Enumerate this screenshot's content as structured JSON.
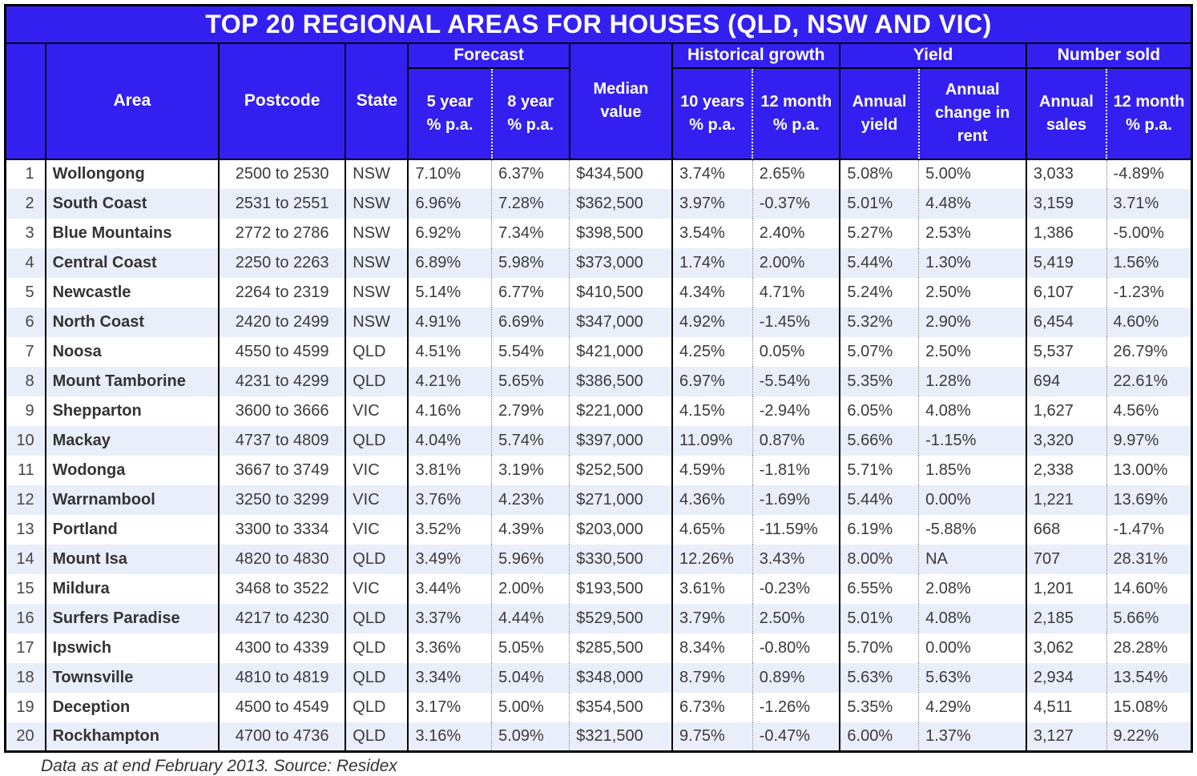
{
  "colors": {
    "header_blue": "#3320F0",
    "row_stripe": "#E9EEFB",
    "row_white": "#FFFFFF",
    "border_black": "#000000",
    "data_text": "#3A3A3A",
    "header_text": "#FFFFFF"
  },
  "chart_data": {
    "type": "table",
    "title": "TOP 20 REGIONAL AREAS FOR HOUSES (QLD, NSW AND VIC)",
    "footnote": "Data as at end February 2013. Source: Residex",
    "header": {
      "area": "Area",
      "postcode": "Postcode",
      "state": "State",
      "median": "Median\nvalue",
      "groups": {
        "forecast": "Forecast",
        "historical": "Historical growth",
        "yield": "Yield",
        "sold": "Number sold"
      },
      "sub": {
        "f5": "5 year\n% p.a.",
        "f8": "8 year\n% p.a.",
        "h10": "10 years\n% p.a.",
        "h12": "12 month\n% p.a.",
        "yield": "Annual\nyield",
        "rent": "Annual change in rent",
        "sales": "Annual\nsales",
        "n12": "12 month\n% p.a."
      }
    },
    "rows": [
      {
        "rank": "1",
        "area": "Wollongong",
        "postcode": "2500 to 2530",
        "state": "NSW",
        "f5": "7.10%",
        "f8": "6.37%",
        "median": "$434,500",
        "h10": "3.74%",
        "h12": "2.65%",
        "yield": "5.08%",
        "rent": "5.00%",
        "sales": "3,033",
        "n12": "-4.89%"
      },
      {
        "rank": "2",
        "area": "South Coast",
        "postcode": "2531 to 2551",
        "state": "NSW",
        "f5": "6.96%",
        "f8": "7.28%",
        "median": "$362,500",
        "h10": "3.97%",
        "h12": "-0.37%",
        "yield": "5.01%",
        "rent": "4.48%",
        "sales": "3,159",
        "n12": "3.71%"
      },
      {
        "rank": "3",
        "area": "Blue Mountains",
        "postcode": "2772 to 2786",
        "state": "NSW",
        "f5": "6.92%",
        "f8": "7.34%",
        "median": "$398,500",
        "h10": "3.54%",
        "h12": "2.40%",
        "yield": "5.27%",
        "rent": "2.53%",
        "sales": "1,386",
        "n12": "-5.00%"
      },
      {
        "rank": "4",
        "area": "Central Coast",
        "postcode": "2250 to 2263",
        "state": "NSW",
        "f5": "6.89%",
        "f8": "5.98%",
        "median": "$373,000",
        "h10": "1.74%",
        "h12": "2.00%",
        "yield": "5.44%",
        "rent": "1.30%",
        "sales": "5,419",
        "n12": "1.56%"
      },
      {
        "rank": "5",
        "area": "Newcastle",
        "postcode": "2264 to 2319",
        "state": "NSW",
        "f5": "5.14%",
        "f8": "6.77%",
        "median": "$410,500",
        "h10": "4.34%",
        "h12": "4.71%",
        "yield": "5.24%",
        "rent": "2.50%",
        "sales": "6,107",
        "n12": "-1.23%"
      },
      {
        "rank": "6",
        "area": "North Coast",
        "postcode": "2420 to 2499",
        "state": "NSW",
        "f5": "4.91%",
        "f8": "6.69%",
        "median": "$347,000",
        "h10": "4.92%",
        "h12": "-1.45%",
        "yield": "5.32%",
        "rent": "2.90%",
        "sales": "6,454",
        "n12": "4.60%"
      },
      {
        "rank": "7",
        "area": "Noosa",
        "postcode": "4550 to 4599",
        "state": "QLD",
        "f5": "4.51%",
        "f8": "5.54%",
        "median": "$421,000",
        "h10": "4.25%",
        "h12": "0.05%",
        "yield": "5.07%",
        "rent": "2.50%",
        "sales": "5,537",
        "n12": "26.79%"
      },
      {
        "rank": "8",
        "area": "Mount Tamborine",
        "postcode": "4231 to 4299",
        "state": "QLD",
        "f5": "4.21%",
        "f8": "5.65%",
        "median": "$386,500",
        "h10": "6.97%",
        "h12": "-5.54%",
        "yield": "5.35%",
        "rent": "1.28%",
        "sales": "694",
        "n12": "22.61%"
      },
      {
        "rank": "9",
        "area": "Shepparton",
        "postcode": "3600 to 3666",
        "state": "VIC",
        "f5": "4.16%",
        "f8": "2.79%",
        "median": "$221,000",
        "h10": "4.15%",
        "h12": "-2.94%",
        "yield": "6.05%",
        "rent": "4.08%",
        "sales": "1,627",
        "n12": "4.56%"
      },
      {
        "rank": "10",
        "area": "Mackay",
        "postcode": "4737 to 4809",
        "state": "QLD",
        "f5": "4.04%",
        "f8": "5.74%",
        "median": "$397,000",
        "h10": "11.09%",
        "h12": "0.87%",
        "yield": "5.66%",
        "rent": "-1.15%",
        "sales": "3,320",
        "n12": "9.97%"
      },
      {
        "rank": "11",
        "area": "Wodonga",
        "postcode": "3667 to 3749",
        "state": "VIC",
        "f5": "3.81%",
        "f8": "3.19%",
        "median": "$252,500",
        "h10": "4.59%",
        "h12": "-1.81%",
        "yield": "5.71%",
        "rent": "1.85%",
        "sales": "2,338",
        "n12": "13.00%"
      },
      {
        "rank": "12",
        "area": "Warrnambool",
        "postcode": "3250 to 3299",
        "state": "VIC",
        "f5": "3.76%",
        "f8": "4.23%",
        "median": "$271,000",
        "h10": "4.36%",
        "h12": "-1.69%",
        "yield": "5.44%",
        "rent": "0.00%",
        "sales": "1,221",
        "n12": "13.69%"
      },
      {
        "rank": "13",
        "area": "Portland",
        "postcode": "3300 to 3334",
        "state": "VIC",
        "f5": "3.52%",
        "f8": "4.39%",
        "median": "$203,000",
        "h10": "4.65%",
        "h12": "-11.59%",
        "yield": "6.19%",
        "rent": "-5.88%",
        "sales": "668",
        "n12": "-1.47%"
      },
      {
        "rank": "14",
        "area": "Mount Isa",
        "postcode": "4820 to 4830",
        "state": "QLD",
        "f5": "3.49%",
        "f8": "5.96%",
        "median": "$330,500",
        "h10": "12.26%",
        "h12": "3.43%",
        "yield": "8.00%",
        "rent": "NA",
        "sales": "707",
        "n12": "28.31%"
      },
      {
        "rank": "15",
        "area": "Mildura",
        "postcode": "3468 to 3522",
        "state": "VIC",
        "f5": "3.44%",
        "f8": "2.00%",
        "median": "$193,500",
        "h10": "3.61%",
        "h12": "-0.23%",
        "yield": "6.55%",
        "rent": "2.08%",
        "sales": "1,201",
        "n12": "14.60%"
      },
      {
        "rank": "16",
        "area": "Surfers Paradise",
        "postcode": "4217 to 4230",
        "state": "QLD",
        "f5": "3.37%",
        "f8": "4.44%",
        "median": "$529,500",
        "h10": "3.79%",
        "h12": "2.50%",
        "yield": "5.01%",
        "rent": "4.08%",
        "sales": "2,185",
        "n12": "5.66%"
      },
      {
        "rank": "17",
        "area": "Ipswich",
        "postcode": "4300 to 4339",
        "state": "QLD",
        "f5": "3.36%",
        "f8": "5.05%",
        "median": "$285,500",
        "h10": "8.34%",
        "h12": "-0.80%",
        "yield": "5.70%",
        "rent": "0.00%",
        "sales": "3,062",
        "n12": "28.28%"
      },
      {
        "rank": "18",
        "area": "Townsville",
        "postcode": "4810 to 4819",
        "state": "QLD",
        "f5": "3.34%",
        "f8": "5.04%",
        "median": "$348,000",
        "h10": "8.79%",
        "h12": "0.89%",
        "yield": "5.63%",
        "rent": "5.63%",
        "sales": "2,934",
        "n12": "13.54%"
      },
      {
        "rank": "19",
        "area": "Deception",
        "postcode": "4500 to 4549",
        "state": "QLD",
        "f5": "3.17%",
        "f8": "5.00%",
        "median": "$354,500",
        "h10": "6.73%",
        "h12": "-1.26%",
        "yield": "5.35%",
        "rent": "4.29%",
        "sales": "4,511",
        "n12": "15.08%"
      },
      {
        "rank": "20",
        "area": "Rockhampton",
        "postcode": "4700 to 4736",
        "state": "QLD",
        "f5": "3.16%",
        "f8": "5.09%",
        "median": "$321,500",
        "h10": "9.75%",
        "h12": "-0.47%",
        "yield": "6.00%",
        "rent": "1.37%",
        "sales": "3,127",
        "n12": "9.22%"
      }
    ]
  }
}
